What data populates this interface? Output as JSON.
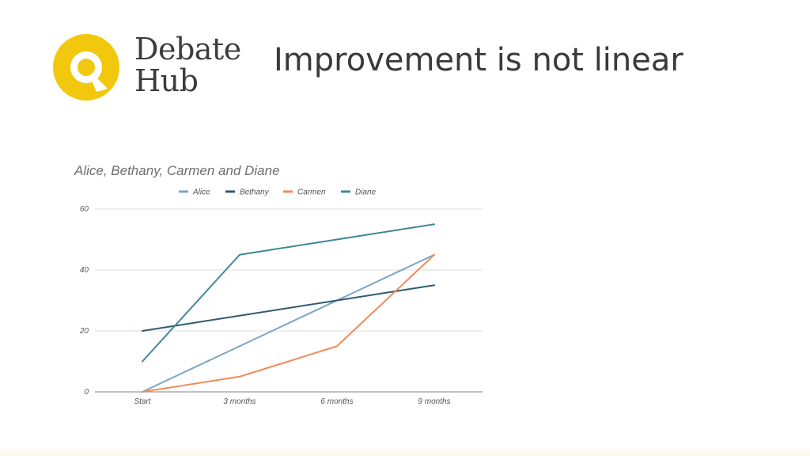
{
  "brand": {
    "name_line1": "Debate",
    "name_line2": "Hub",
    "logo_color": "#f2c80f"
  },
  "slide": {
    "title": "Improvement is not linear"
  },
  "chart_data": {
    "type": "line",
    "title": "Alice, Bethany, Carmen  and Diane",
    "categories": [
      "Start",
      "3 months",
      "6 months",
      "9 months"
    ],
    "ylim": [
      0,
      60
    ],
    "yticks": [
      0,
      20,
      40,
      60
    ],
    "grid": true,
    "legend_position": "top",
    "series": [
      {
        "name": "Alice",
        "color": "#7ba6c2",
        "values": [
          0,
          15,
          30,
          45
        ]
      },
      {
        "name": "Bethany",
        "color": "#2f5b73",
        "values": [
          20,
          25,
          30,
          35
        ]
      },
      {
        "name": "Carmen",
        "color": "#f28b5b",
        "values": [
          0,
          5,
          15,
          45
        ]
      },
      {
        "name": "Diane",
        "color": "#3f8796",
        "values": [
          10,
          45,
          50,
          55
        ]
      }
    ]
  }
}
